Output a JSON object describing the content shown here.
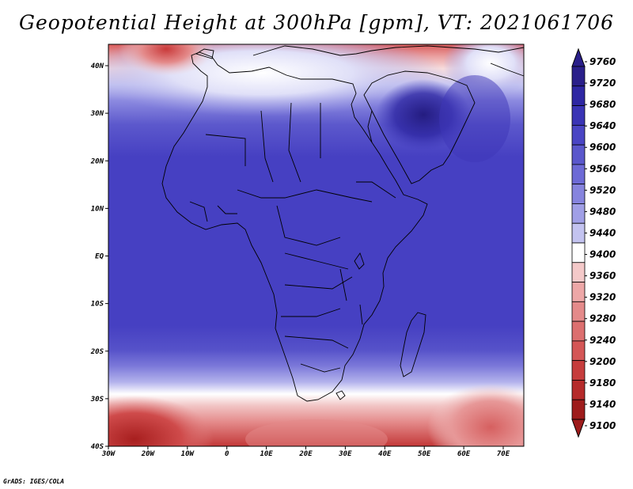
{
  "title": "Geopotential Height at 300hPa [gpm], VT: 2021061706",
  "credit": "GrADS: IGES/COLA",
  "map": {
    "lat_labels": [
      "40N",
      "30N",
      "20N",
      "10N",
      "EQ",
      "10S",
      "20S",
      "30S",
      "40S"
    ],
    "lon_labels": [
      "30W",
      "20W",
      "10W",
      "0",
      "10E",
      "20E",
      "30E",
      "40E",
      "50E",
      "60E",
      "70E"
    ]
  },
  "colorbar": {
    "levels": [
      "9760",
      "9720",
      "9680",
      "9640",
      "9600",
      "9560",
      "9520",
      "9480",
      "9440",
      "9400",
      "9360",
      "9320",
      "9280",
      "9240",
      "9200",
      "9180",
      "9140",
      "9100"
    ],
    "colors": [
      "#2a1f8a",
      "#2e27a3",
      "#3a34b5",
      "#4a45c4",
      "#5a57cc",
      "#6d6ad6",
      "#8684de",
      "#a09fe6",
      "#c3c3f0",
      "#ffffff",
      "#f4c9c9",
      "#eda7a7",
      "#e48a8a",
      "#dc6f6f",
      "#d45656",
      "#c63d3d",
      "#b52a2a",
      "#9e1c1c"
    ]
  }
}
